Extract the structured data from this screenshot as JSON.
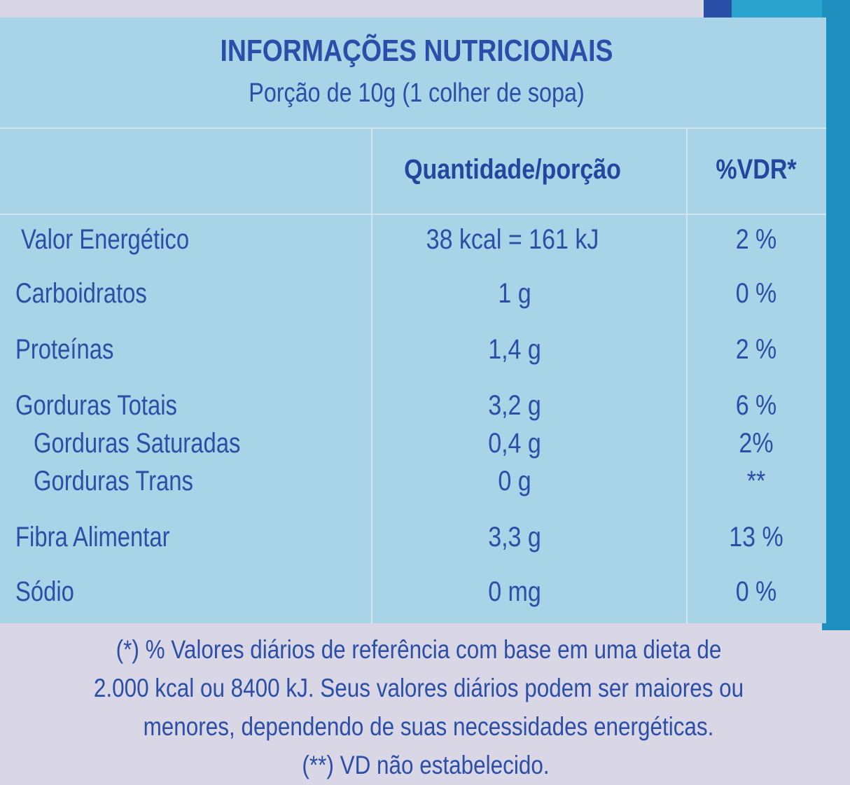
{
  "title": "INFORMAÇÕES NUTRICIONAIS",
  "serving": "Porção de 10g (1 colher de sopa)",
  "headers": {
    "quantity": "Quantidade/porção",
    "vdr": "%VDR*"
  },
  "rows": [
    {
      "label": "Valor Energético",
      "quantity": "38 kcal = 161 kJ",
      "vdr": "2 %"
    },
    {
      "label": "Carboidratos",
      "quantity": "1 g",
      "vdr": "0 %"
    },
    {
      "label": "Proteínas",
      "quantity": "1,4 g",
      "vdr": "2 %"
    },
    {
      "label": "Gorduras Totais",
      "quantity": "3,2 g",
      "vdr": "6 %"
    },
    {
      "label": "Gorduras Saturadas",
      "quantity": "0,4 g",
      "vdr": "2%"
    },
    {
      "label": "Gorduras Trans",
      "quantity": "0 g",
      "vdr": "**"
    },
    {
      "label": "Fibra Alimentar",
      "quantity": "3,3 g",
      "vdr": "13 %"
    },
    {
      "label": "Sódio",
      "quantity": "0 mg",
      "vdr": "0 %"
    }
  ],
  "footnotes": [
    "(*) % Valores diários de referência com base em uma dieta de",
    "2.000 kcal ou 8400 kJ. Seus valores diários podem ser maiores ou",
    "menores, dependendo de suas necessidades energéticas.",
    "(**) VD não estabelecido."
  ],
  "colors": {
    "panel": "#a9d3e6",
    "text": "#2b4ea6"
  }
}
